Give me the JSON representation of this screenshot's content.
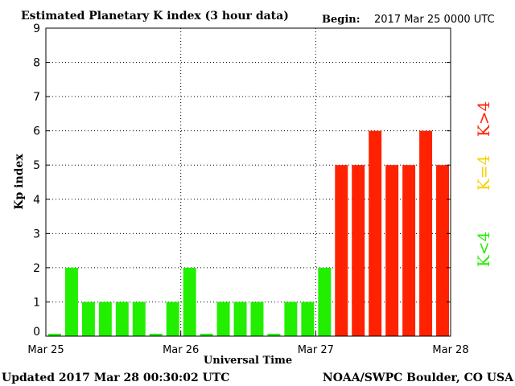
{
  "chart_data": {
    "type": "bar",
    "title": "Estimated Planetary K index (3 hour data)",
    "begin_label": "Begin:",
    "begin_value": "2017 Mar 25 0000 UTC",
    "xlabel": "Universal Time",
    "ylabel": "Kp index",
    "ylim": [
      0,
      9
    ],
    "yticks": [
      "0",
      "1",
      "2",
      "3",
      "4",
      "5",
      "6",
      "7",
      "8",
      "9"
    ],
    "xtick_labels": [
      "Mar 25",
      "Mar 26",
      "Mar 27",
      "Mar 28"
    ],
    "grid": true,
    "values": [
      0,
      2,
      1,
      1,
      1,
      1,
      0,
      1,
      2,
      0,
      1,
      1,
      1,
      0,
      1,
      1,
      2,
      5,
      5,
      6,
      5,
      5,
      6,
      5
    ],
    "colors": {
      "low": "#22ee00",
      "mid": "#f5d100",
      "high": "#ff2200"
    },
    "legend": [
      {
        "label": "K<4",
        "color": "#22ee00"
      },
      {
        "label": "K=4",
        "color": "#f5d100"
      },
      {
        "label": "K>4",
        "color": "#ff2200"
      }
    ]
  },
  "footer": {
    "updated": "Updated 2017 Mar 28 00:30:02 UTC",
    "source": "NOAA/SWPC Boulder, CO USA"
  }
}
